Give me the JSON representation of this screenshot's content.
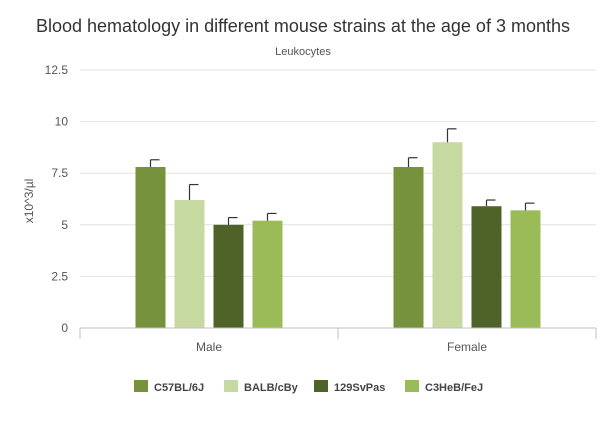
{
  "chart_data": {
    "type": "bar",
    "title": "Blood hematology in different mouse strains at the age of 3 months",
    "subtitle": "Leukocytes",
    "xlabel": "",
    "ylabel": "x10^3/µl",
    "categories": [
      "Male",
      "Female"
    ],
    "series": [
      {
        "name": "C57BL/6J",
        "color": "#76923c",
        "values": [
          7.8,
          7.8
        ],
        "errors": [
          0.35,
          0.45
        ]
      },
      {
        "name": "BALB/cBy",
        "color": "#c5d9a0",
        "values": [
          6.2,
          9.0
        ],
        "errors": [
          0.75,
          0.65
        ]
      },
      {
        "name": "129SvPas",
        "color": "#4f6228",
        "values": [
          5.0,
          5.9
        ],
        "errors": [
          0.35,
          0.3
        ]
      },
      {
        "name": "C3HeB/FeJ",
        "color": "#9bbb59",
        "values": [
          5.2,
          5.7
        ],
        "errors": [
          0.35,
          0.35
        ]
      }
    ],
    "ylim": [
      0,
      12.5
    ],
    "yticks": [
      "0",
      "2.5",
      "5",
      "7.5",
      "10",
      "12.5"
    ],
    "grid": true,
    "legend_position": "bottom",
    "error_bars": true
  }
}
